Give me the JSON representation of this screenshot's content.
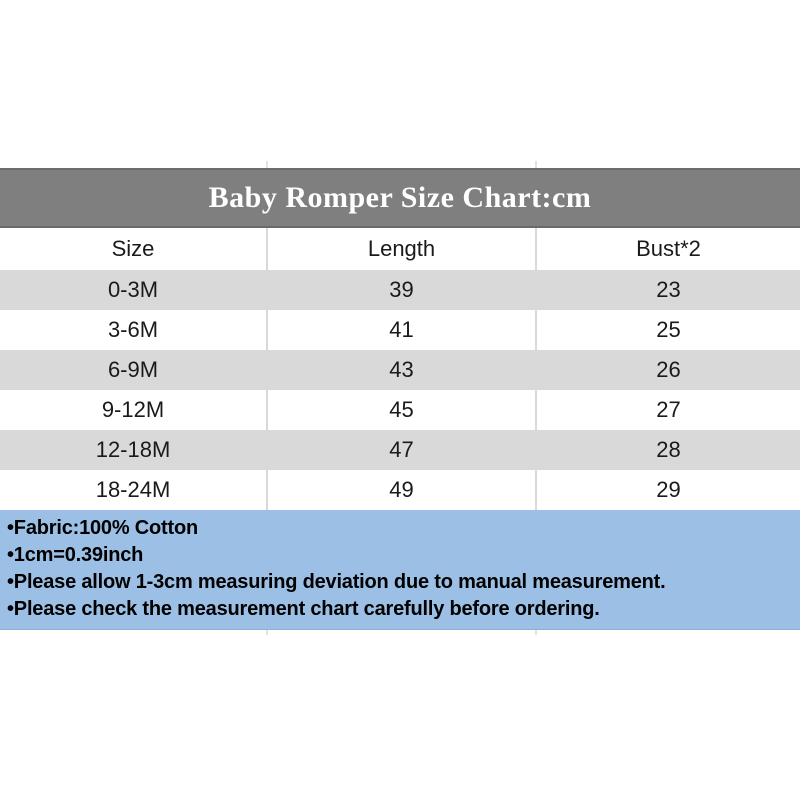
{
  "title_banner": {
    "text": "Baby Romper Size Chart:cm",
    "background": "#7f7f7f",
    "text_color": "#ffffff"
  },
  "size_chart": {
    "columns": [
      "Size",
      "Length",
      "Bust*2"
    ],
    "rows": [
      {
        "size": "0-3M",
        "length": "39",
        "bust2": "23"
      },
      {
        "size": "3-6M",
        "length": "41",
        "bust2": "25"
      },
      {
        "size": "6-9M",
        "length": "43",
        "bust2": "26"
      },
      {
        "size": "9-12M",
        "length": "45",
        "bust2": "27"
      },
      {
        "size": "12-18M",
        "length": "47",
        "bust2": "28"
      },
      {
        "size": "18-24M",
        "length": "49",
        "bust2": "29"
      }
    ],
    "stripe_color": "#d9d9d9"
  },
  "notes": {
    "background": "#9cc0e5",
    "lines": [
      "•Fabric:100% Cotton",
      "•1cm=0.39inch",
      "•Please allow 1-3cm measuring deviation due to manual measurement.",
      "•Please check the measurement chart carefully before ordering."
    ]
  }
}
